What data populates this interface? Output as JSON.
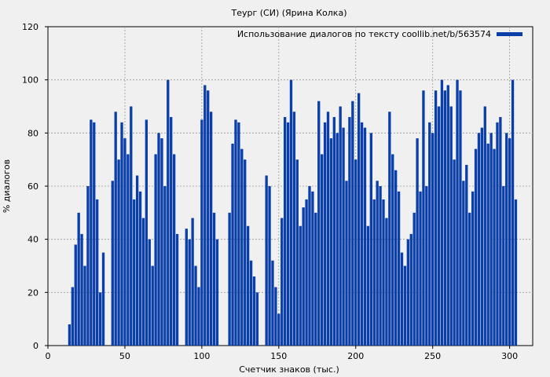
{
  "chart_data": {
    "type": "bar",
    "title": "Теург (СИ) (Ярина Колка)",
    "xlabel": "Счетчик знаков (тыс.)",
    "ylabel": "% диалогов",
    "xlim": [
      0,
      315
    ],
    "ylim": [
      0,
      120
    ],
    "xticks": [
      0,
      50,
      100,
      150,
      200,
      250,
      300
    ],
    "yticks": [
      0,
      20,
      40,
      60,
      80,
      100,
      120
    ],
    "grid": true,
    "legend_position": "top-right",
    "series": [
      {
        "name": "Использование диалогов по тексту coollib.net/b/563574",
        "color": "#0a3ea8",
        "x": [
          14,
          16,
          18,
          20,
          22,
          24,
          26,
          28,
          30,
          32,
          34,
          36,
          40,
          42,
          44,
          46,
          48,
          50,
          52,
          54,
          56,
          58,
          60,
          62,
          64,
          66,
          68,
          70,
          72,
          74,
          76,
          78,
          80,
          82,
          84,
          88,
          90,
          92,
          94,
          96,
          98,
          100,
          102,
          104,
          106,
          108,
          110,
          116,
          118,
          120,
          122,
          124,
          126,
          128,
          130,
          132,
          134,
          136,
          140,
          142,
          144,
          146,
          148,
          150,
          152,
          154,
          156,
          158,
          160,
          162,
          164,
          166,
          168,
          170,
          172,
          174,
          176,
          178,
          180,
          182,
          184,
          186,
          188,
          190,
          192,
          194,
          196,
          198,
          200,
          202,
          204,
          206,
          208,
          210,
          212,
          214,
          216,
          218,
          220,
          222,
          224,
          226,
          228,
          230,
          232,
          234,
          236,
          238,
          240,
          242,
          244,
          246,
          248,
          250,
          252,
          254,
          256,
          258,
          260,
          262,
          264,
          266,
          268,
          270,
          272,
          274,
          276,
          278,
          280,
          282,
          284,
          286,
          288,
          290,
          292,
          294,
          296,
          298,
          300,
          302,
          304
        ],
        "values": [
          8,
          22,
          38,
          50,
          42,
          30,
          60,
          85,
          84,
          55,
          20,
          35,
          0,
          62,
          88,
          70,
          84,
          78,
          72,
          90,
          55,
          64,
          58,
          48,
          85,
          40,
          30,
          72,
          80,
          78,
          60,
          100,
          86,
          72,
          42,
          0,
          44,
          40,
          48,
          30,
          22,
          85,
          98,
          96,
          88,
          50,
          40,
          0,
          50,
          76,
          85,
          84,
          74,
          70,
          45,
          32,
          26,
          20,
          0,
          64,
          60,
          32,
          22,
          12,
          48,
          86,
          84,
          100,
          88,
          70,
          45,
          52,
          55,
          60,
          58,
          50,
          92,
          72,
          84,
          88,
          78,
          86,
          80,
          90,
          82,
          62,
          86,
          92,
          70,
          95,
          84,
          82,
          45,
          80,
          55,
          62,
          60,
          55,
          48,
          88,
          72,
          66,
          58,
          35,
          30,
          40,
          42,
          50,
          78,
          58,
          96,
          60,
          84,
          80,
          96,
          90,
          100,
          96,
          98,
          90,
          70,
          100,
          96,
          62,
          68,
          50,
          58,
          74,
          80,
          82,
          90,
          76,
          80,
          74,
          84,
          86,
          60,
          80,
          78,
          100,
          55
        ]
      }
    ]
  }
}
